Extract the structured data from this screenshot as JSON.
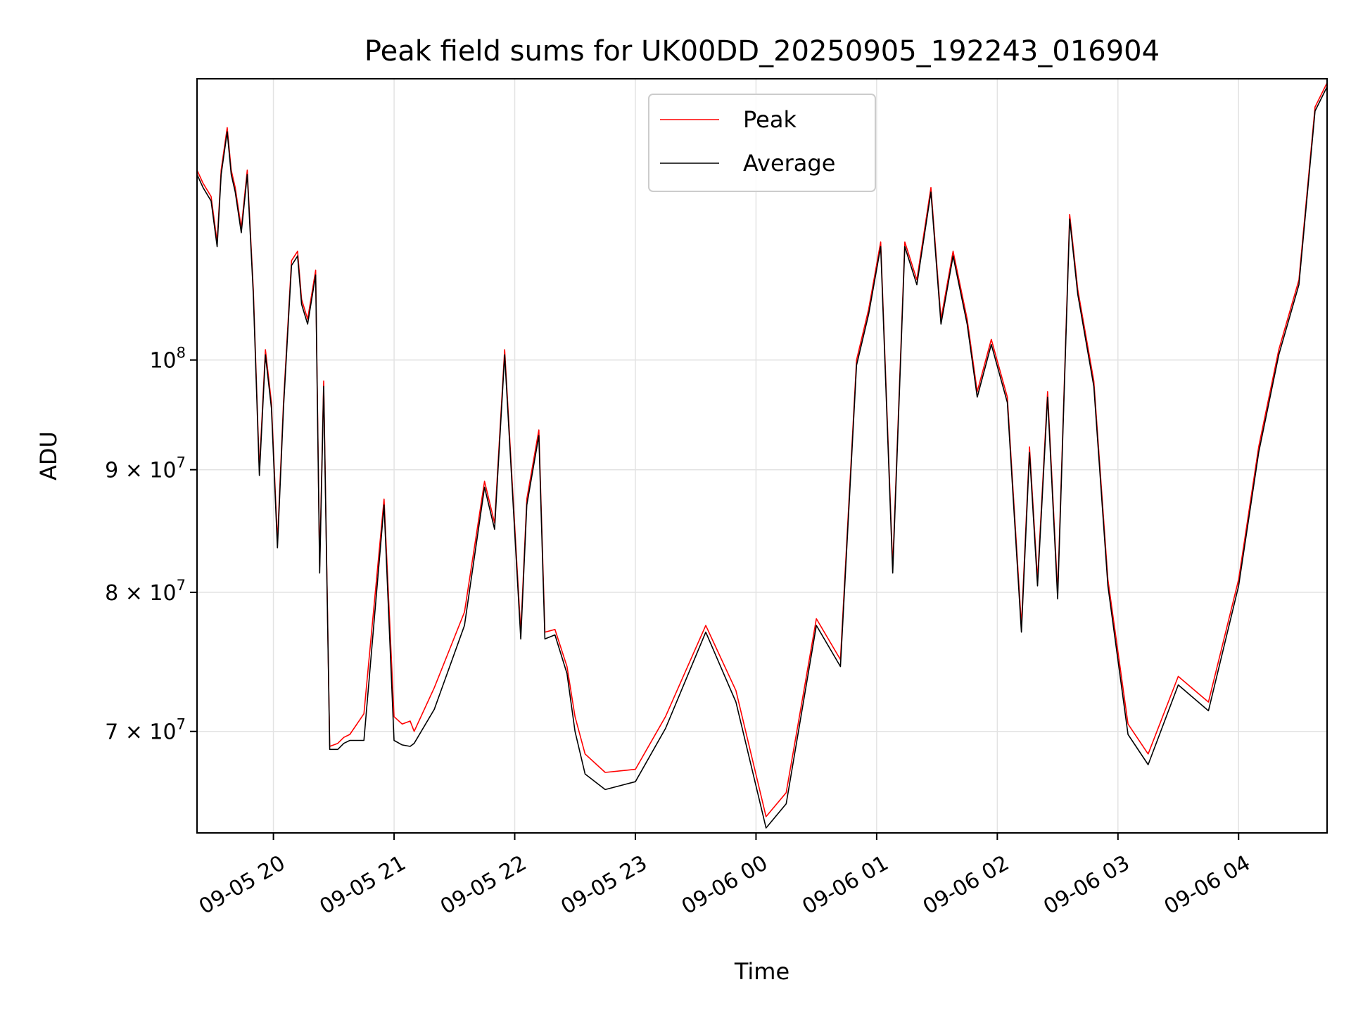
{
  "chart_data": {
    "type": "line",
    "title": "Peak field sums for UK00DD_20250905_192243_016904",
    "xlabel": "Time",
    "ylabel": "ADU",
    "y_scale": "log",
    "ylim": [
      63500000,
      131000000
    ],
    "xlim": [
      "2025-09-05 19:22",
      "2025-09-06 04:44"
    ],
    "grid": true,
    "legend_position": "upper center",
    "x_ticks": [
      "09-05 20",
      "09-05 21",
      "09-05 22",
      "09-05 23",
      "09-06 00",
      "09-06 01",
      "09-06 02",
      "09-06 03",
      "09-06 04"
    ],
    "y_ticks": [
      {
        "value": 70000000,
        "base": "7 × 10",
        "exp": "7"
      },
      {
        "value": 80000000,
        "base": "8 × 10",
        "exp": "7"
      },
      {
        "value": 90000000,
        "base": "9 × 10",
        "exp": "7"
      },
      {
        "value": 100000000,
        "base": "10",
        "exp": "8"
      }
    ],
    "series": [
      {
        "name": "Peak",
        "color": "#ff0000"
      },
      {
        "name": "Average",
        "color": "#000000"
      }
    ],
    "x": [
      "2025-09-05 19:22",
      "2025-09-05 19:25",
      "2025-09-05 19:29",
      "2025-09-05 19:32",
      "2025-09-05 19:34",
      "2025-09-05 19:37",
      "2025-09-05 19:39",
      "2025-09-05 19:41",
      "2025-09-05 19:44",
      "2025-09-05 19:47",
      "2025-09-05 19:50",
      "2025-09-05 19:53",
      "2025-09-05 19:56",
      "2025-09-05 19:59",
      "2025-09-05 20:02",
      "2025-09-05 20:05",
      "2025-09-05 20:09",
      "2025-09-05 20:12",
      "2025-09-05 20:14",
      "2025-09-05 20:17",
      "2025-09-05 20:21",
      "2025-09-05 20:23",
      "2025-09-05 20:25",
      "2025-09-05 20:28",
      "2025-09-05 20:32",
      "2025-09-05 20:35",
      "2025-09-05 20:38",
      "2025-09-05 20:45",
      "2025-09-05 20:55",
      "2025-09-05 21:00",
      "2025-09-05 21:04",
      "2025-09-05 21:08",
      "2025-09-05 21:10",
      "2025-09-05 21:20",
      "2025-09-05 21:35",
      "2025-09-05 21:45",
      "2025-09-05 21:50",
      "2025-09-05 21:55",
      "2025-09-05 22:03",
      "2025-09-05 22:06",
      "2025-09-05 22:12",
      "2025-09-05 22:15",
      "2025-09-05 22:20",
      "2025-09-05 22:26",
      "2025-09-05 22:30",
      "2025-09-05 22:35",
      "2025-09-05 22:45",
      "2025-09-05 23:00",
      "2025-09-05 23:15",
      "2025-09-05 23:35",
      "2025-09-05 23:50",
      "2025-09-06 00:05",
      "2025-09-06 00:15",
      "2025-09-06 00:30",
      "2025-09-06 00:42",
      "2025-09-06 00:50",
      "2025-09-06 00:56",
      "2025-09-06 01:02",
      "2025-09-06 01:08",
      "2025-09-06 01:14",
      "2025-09-06 01:20",
      "2025-09-06 01:27",
      "2025-09-06 01:32",
      "2025-09-06 01:38",
      "2025-09-06 01:45",
      "2025-09-06 01:50",
      "2025-09-06 01:57",
      "2025-09-06 02:05",
      "2025-09-06 02:12",
      "2025-09-06 02:16",
      "2025-09-06 02:20",
      "2025-09-06 02:25",
      "2025-09-06 02:30",
      "2025-09-06 02:36",
      "2025-09-06 02:40",
      "2025-09-06 02:48",
      "2025-09-06 02:55",
      "2025-09-06 03:05",
      "2025-09-06 03:15",
      "2025-09-06 03:30",
      "2025-09-06 03:45",
      "2025-09-06 04:00",
      "2025-09-06 04:10",
      "2025-09-06 04:20",
      "2025-09-06 04:30",
      "2025-09-06 04:38",
      "2025-09-06 04:44"
    ],
    "peak_values": [
      120000000,
      118500000,
      117000000,
      112000000,
      120000000,
      125000000,
      120000000,
      118000000,
      113500000,
      120000000,
      107000000,
      90000000,
      101000000,
      96000000,
      84000000,
      96000000,
      110000000,
      111000000,
      106000000,
      104000000,
      109000000,
      82000000,
      98000000,
      69000000,
      69200000,
      69600000,
      69800000,
      71200000,
      87500000,
      71000000,
      70500000,
      70700000,
      70000000,
      73000000,
      78500000,
      89000000,
      85500000,
      101000000,
      77000000,
      87500000,
      93500000,
      77000000,
      77200000,
      74500000,
      71000000,
      68500000,
      67300000,
      67500000,
      71000000,
      77500000,
      72800000,
      64500000,
      66000000,
      78000000,
      75000000,
      100000000,
      105000000,
      112000000,
      82000000,
      112000000,
      108000000,
      118000000,
      104000000,
      111000000,
      104000000,
      97000000,
      102000000,
      96500000,
      77500000,
      92000000,
      81000000,
      97000000,
      80000000,
      115000000,
      107000000,
      98000000,
      81000000,
      70500000,
      68500000,
      73800000,
      72000000,
      81000000,
      92000000,
      101000000,
      108000000,
      127500000,
      130500000
    ],
    "average_values": [
      119500000,
      118000000,
      116500000,
      111500000,
      119500000,
      124500000,
      119500000,
      117500000,
      113000000,
      119500000,
      106500000,
      89500000,
      100500000,
      95500000,
      83500000,
      95500000,
      109500000,
      110500000,
      105500000,
      103500000,
      108500000,
      81500000,
      97500000,
      68800000,
      68800000,
      69200000,
      69400000,
      69400000,
      87000000,
      69400000,
      69100000,
      69000000,
      69200000,
      71500000,
      77500000,
      88500000,
      85000000,
      100500000,
      76500000,
      87000000,
      93000000,
      76500000,
      76800000,
      74000000,
      70000000,
      67200000,
      66200000,
      66700000,
      70200000,
      77000000,
      72000000,
      63800000,
      65300000,
      77500000,
      74500000,
      99500000,
      104500000,
      111500000,
      81500000,
      111500000,
      107500000,
      117500000,
      103500000,
      110500000,
      103500000,
      96500000,
      101500000,
      96000000,
      77000000,
      91500000,
      80500000,
      96500000,
      79500000,
      114500000,
      106500000,
      97500000,
      80500000,
      69800000,
      67800000,
      73200000,
      71400000,
      80500000,
      91500000,
      100500000,
      107500000,
      127000000,
      130000000
    ]
  }
}
